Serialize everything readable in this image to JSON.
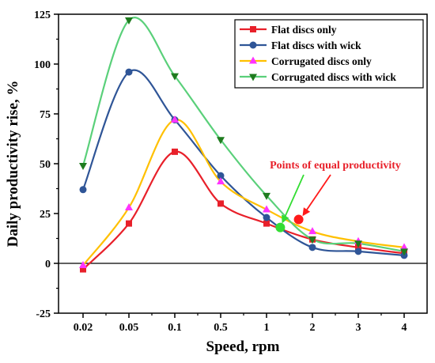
{
  "chart_data": {
    "type": "line",
    "title": "",
    "xlabel": "Speed, rpm",
    "ylabel": "Daily productivity rise, %",
    "categories": [
      "0.02",
      "0.05",
      "0.1",
      "0.5",
      "1",
      "2",
      "3",
      "4"
    ],
    "ylim": [
      -25,
      125
    ],
    "yticks": [
      -25,
      0,
      25,
      50,
      75,
      100,
      125
    ],
    "grid": false,
    "legend_position": "top-right",
    "series": [
      {
        "name": "Flat discs only",
        "color": "#e8202a",
        "marker": "square",
        "values": [
          -3,
          20,
          56,
          30,
          20,
          12,
          8,
          5
        ]
      },
      {
        "name": "Flat discs with wick",
        "color": "#2f5597",
        "marker": "circle",
        "values": [
          37,
          96,
          72,
          44,
          23,
          8,
          6,
          4
        ]
      },
      {
        "name": "Corrugated discs only",
        "color": "#ff33ff",
        "line_color": "#ffc000",
        "marker": "triangle-up",
        "values": [
          -1,
          28,
          72,
          41,
          27,
          16,
          11,
          8
        ]
      },
      {
        "name": "Corrugated discs with wick",
        "color": "#1e7b1e",
        "line_color": "#5ad07a",
        "marker": "triangle-down",
        "values": [
          49,
          122,
          94,
          62,
          34,
          12,
          10,
          6
        ]
      }
    ],
    "annotation": {
      "text": "Points of equal productivity",
      "color": "#e8202a",
      "points": [
        {
          "x": 4.3,
          "y": 18,
          "color": "#33dd33"
        },
        {
          "x": 4.7,
          "y": 22,
          "color": "#ff1a1a"
        }
      ]
    }
  }
}
